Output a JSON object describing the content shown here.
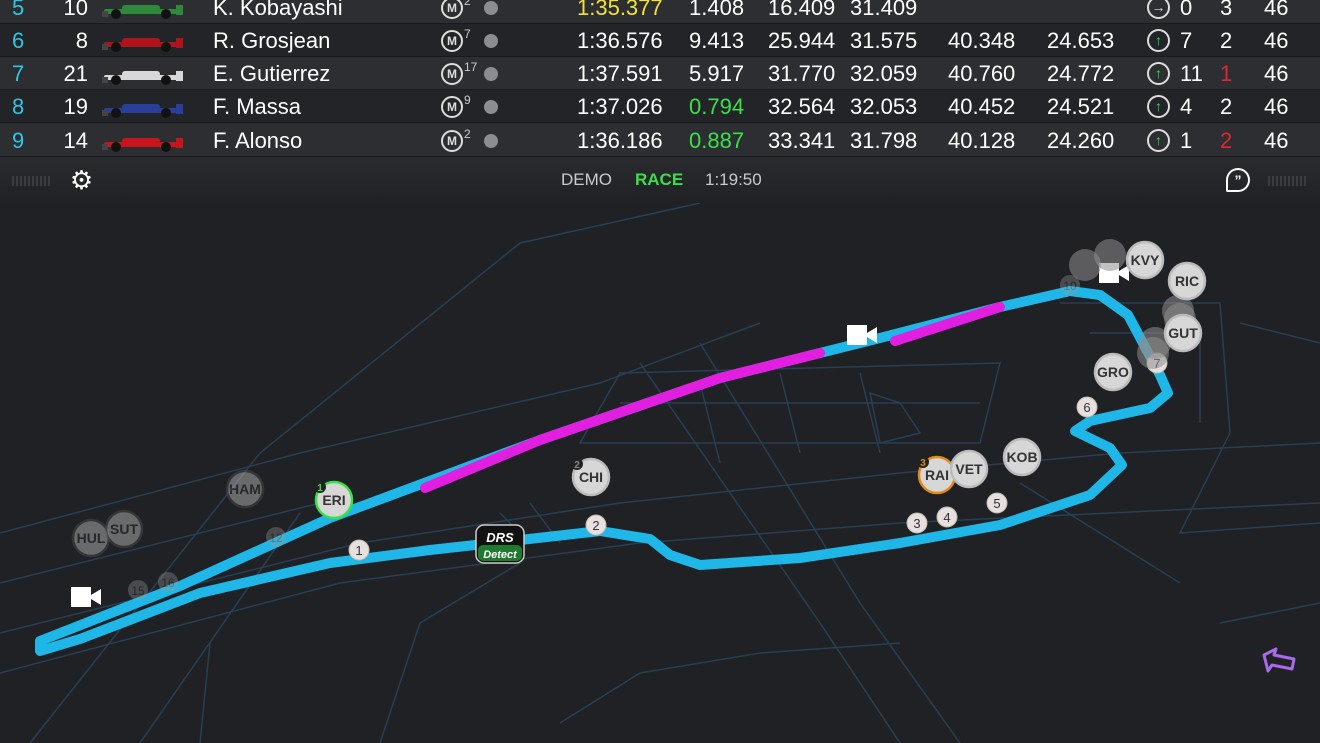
{
  "timing": {
    "rows": [
      {
        "pos": "5",
        "num": "10",
        "team_color": "#2e8a3a",
        "name": "K. Kobayashi",
        "tyre": "M",
        "tyre_age": "2",
        "best": "1:35.377",
        "best_color": "#f2e23a",
        "gap": "1.408",
        "gap_color": "#ffffff",
        "s1": "16.409",
        "s2": "31.409",
        "s3": "",
        "speed": "",
        "arrow": "right",
        "pos_change": "0",
        "stops": "3",
        "stops_color": "#ffffff",
        "laps": "46"
      },
      {
        "pos": "6",
        "num": "8",
        "team_color": "#b0141a",
        "name": "R. Grosjean",
        "tyre": "M",
        "tyre_age": "7",
        "best": "1:36.576",
        "best_color": "#ffffff",
        "gap": "9.413",
        "gap_color": "#ffffff",
        "s1": "25.944",
        "s2": "31.575",
        "s3": "40.348",
        "speed": "24.653",
        "arrow": "up",
        "pos_change": "7",
        "stops": "2",
        "stops_color": "#ffffff",
        "laps": "46"
      },
      {
        "pos": "7",
        "num": "21",
        "team_color": "#d8d8d8",
        "name": "E. Gutierrez",
        "tyre": "M",
        "tyre_age": "17",
        "best": "1:37.591",
        "best_color": "#ffffff",
        "gap": "5.917",
        "gap_color": "#ffffff",
        "s1": "31.770",
        "s2": "32.059",
        "s3": "40.760",
        "speed": "24.772",
        "arrow": "up",
        "pos_change": "11",
        "stops": "1",
        "stops_color": "#e0262e",
        "laps": "46"
      },
      {
        "pos": "8",
        "num": "19",
        "team_color": "#2a3f9a",
        "name": "F. Massa",
        "tyre": "M",
        "tyre_age": "9",
        "best": "1:37.026",
        "best_color": "#ffffff",
        "gap": "0.794",
        "gap_color": "#3ae04a",
        "s1": "32.564",
        "s2": "32.053",
        "s3": "40.452",
        "speed": "24.521",
        "arrow": "up",
        "pos_change": "4",
        "stops": "2",
        "stops_color": "#ffffff",
        "laps": "46"
      },
      {
        "pos": "9",
        "num": "14",
        "team_color": "#c8141c",
        "name": "F. Alonso",
        "tyre": "M",
        "tyre_age": "2",
        "best": "1:36.186",
        "best_color": "#ffffff",
        "gap": "0.887",
        "gap_color": "#3ae04a",
        "s1": "33.341",
        "s2": "31.798",
        "s3": "40.128",
        "speed": "24.260",
        "arrow": "up",
        "pos_change": "1",
        "stops": "2",
        "stops_color": "#e0262e",
        "laps": "46"
      }
    ]
  },
  "status": {
    "mode": "DEMO",
    "session": "RACE",
    "session_color": "#3ae04a",
    "clock": "1:19:50",
    "settings_icon": "gear-icon",
    "chat_icon": "chat-quote-icon"
  },
  "map": {
    "track_color": "#1fb7e8",
    "drs_color": "#e21ee0",
    "drs_label_top": "DRS",
    "drs_label_bottom": "Detect",
    "cars": [
      {
        "code": "ERI",
        "badge": "1",
        "badge_color": "#3ae04a",
        "ring": "#3ae04a"
      },
      {
        "code": "CHI",
        "badge": "2",
        "badge_color": "#888888",
        "ring": "#bbbbbb"
      },
      {
        "code": "RAI",
        "badge": "3",
        "badge_color": "#e08a1e",
        "ring": "#e08a1e"
      },
      {
        "code": "VET",
        "badge": "",
        "badge_color": "",
        "ring": "#bbbbbb"
      },
      {
        "code": "KOB",
        "badge": "",
        "badge_color": "",
        "ring": "#bbbbbb"
      },
      {
        "code": "GRO",
        "badge": "",
        "badge_color": "",
        "ring": "#bbbbbb"
      },
      {
        "code": "GUT",
        "badge": "",
        "badge_color": "",
        "ring": "#bbbbbb"
      },
      {
        "code": "RIC",
        "badge": "",
        "badge_color": "",
        "ring": "#bbbbbb"
      },
      {
        "code": "KVY",
        "badge": "",
        "badge_color": "",
        "ring": "#bbbbbb"
      },
      {
        "code": "HAM",
        "badge": "",
        "badge_color": "",
        "ring": "#555555"
      },
      {
        "code": "HUL",
        "badge": "",
        "badge_color": "",
        "ring": "#555555"
      },
      {
        "code": "SUT",
        "badge": "",
        "badge_color": "",
        "ring": "#555555"
      }
    ],
    "markers": [
      "1",
      "2",
      "3",
      "4",
      "5",
      "6",
      "7"
    ],
    "ghost_markers": [
      "12",
      "15",
      "16",
      "10"
    ]
  }
}
